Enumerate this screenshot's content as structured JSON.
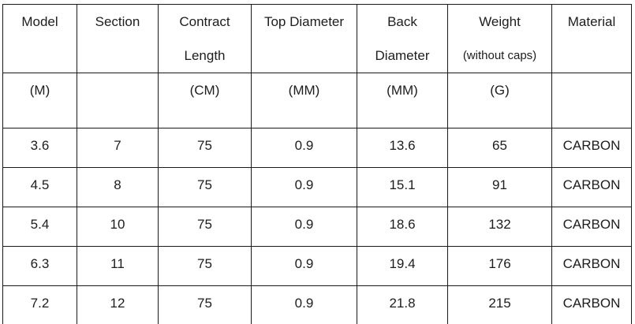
{
  "chart_data": {
    "type": "table",
    "columns": [
      {
        "label": "Model",
        "header_lines": [
          {
            "text": "Model",
            "small": false
          }
        ],
        "unit": "(M)"
      },
      {
        "label": "Section",
        "header_lines": [
          {
            "text": "Section",
            "small": false
          }
        ],
        "unit": ""
      },
      {
        "label": "Contract Length",
        "header_lines": [
          {
            "text": "Contract",
            "small": false
          },
          {
            "text": "Length",
            "small": false
          }
        ],
        "unit": "(CM)"
      },
      {
        "label": "Top Diameter",
        "header_lines": [
          {
            "text": "Top Diameter",
            "small": false
          }
        ],
        "unit": "(MM)"
      },
      {
        "label": "Back Diameter",
        "header_lines": [
          {
            "text": "Back",
            "small": false
          },
          {
            "text": "Diameter",
            "small": false
          }
        ],
        "unit": "(MM)"
      },
      {
        "label": "Weight (without caps)",
        "header_lines": [
          {
            "text": "Weight",
            "small": false
          },
          {
            "text": "(without caps)",
            "small": true
          }
        ],
        "unit": "(G)"
      },
      {
        "label": "Material",
        "header_lines": [
          {
            "text": "Material",
            "small": false
          }
        ],
        "unit": ""
      }
    ],
    "rows": [
      [
        "3.6",
        "7",
        "75",
        "0.9",
        "13.6",
        "65",
        "CARBON"
      ],
      [
        "4.5",
        "8",
        "75",
        "0.9",
        "15.1",
        "91",
        "CARBON"
      ],
      [
        "5.4",
        "10",
        "75",
        "0.9",
        "18.6",
        "132",
        "CARBON"
      ],
      [
        "6.3",
        "11",
        "75",
        "0.9",
        "19.4",
        "176",
        "CARBON"
      ],
      [
        "7.2",
        "12",
        "75",
        "0.9",
        "21.8",
        "215",
        "CARBON"
      ]
    ]
  },
  "colors": {
    "border": "#1a1a1a",
    "text": "#1d1d1d",
    "background": "#ffffff"
  }
}
